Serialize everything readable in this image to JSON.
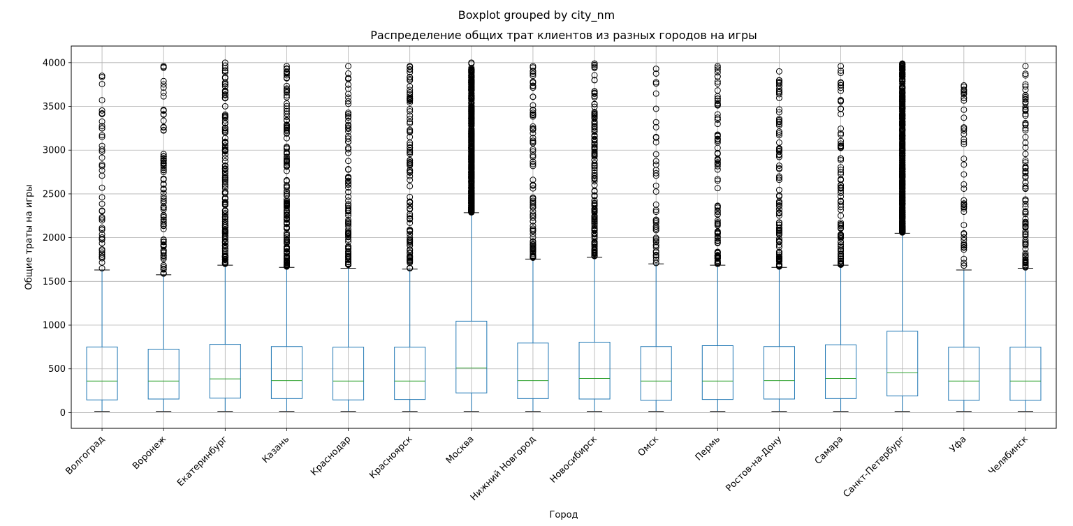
{
  "suptitle": "Boxplot grouped by city_nm",
  "chart_data": {
    "type": "boxplot",
    "title": "Распределение общих трат клиентов из разных городов на игры",
    "xlabel": "Город",
    "ylabel": "Общие траты на игры",
    "ylim": [
      -180,
      4190
    ],
    "yticks": [
      0,
      500,
      1000,
      1500,
      2000,
      2500,
      3000,
      3500,
      4000
    ],
    "grid": true,
    "colors": {
      "box": "#1f77b4",
      "median": "#2ca02c",
      "flier": "#000000",
      "grid": "#b0b0b0"
    },
    "categories": [
      "Волгоград",
      "Воронеж",
      "Екатеринбург",
      "Казань",
      "Краснодар",
      "Красноярск",
      "Москва",
      "Нижний Новгород",
      "Новосибирск",
      "Омск",
      "Пермь",
      "Ростов-на-Дону",
      "Самара",
      "Санкт-Петербург",
      "Уфа",
      "Челябинск"
    ],
    "boxes": [
      {
        "whislo": 15,
        "q1": 145,
        "median": 360,
        "q3": 750,
        "whishi": 1630,
        "fliers_min": 1650,
        "fliers_max": 3850,
        "flier_density": "sparse"
      },
      {
        "whislo": 15,
        "q1": 155,
        "median": 360,
        "q3": 725,
        "whishi": 1575,
        "fliers_min": 1590,
        "fliers_max": 3960,
        "flier_density": "medium"
      },
      {
        "whislo": 15,
        "q1": 165,
        "median": 385,
        "q3": 780,
        "whishi": 1685,
        "fliers_min": 1700,
        "fliers_max": 4000,
        "flier_density": "dense"
      },
      {
        "whislo": 15,
        "q1": 160,
        "median": 365,
        "q3": 755,
        "whishi": 1660,
        "fliers_min": 1670,
        "fliers_max": 3960,
        "flier_density": "dense"
      },
      {
        "whislo": 15,
        "q1": 145,
        "median": 360,
        "q3": 748,
        "whishi": 1650,
        "fliers_min": 1690,
        "fliers_max": 3960,
        "flier_density": "medium"
      },
      {
        "whislo": 15,
        "q1": 150,
        "median": 360,
        "q3": 748,
        "whishi": 1640,
        "fliers_min": 1650,
        "fliers_max": 3960,
        "flier_density": "medium"
      },
      {
        "whislo": 15,
        "q1": 225,
        "median": 510,
        "q3": 1045,
        "whishi": 2285,
        "fliers_min": 2290,
        "fliers_max": 4000,
        "flier_density": "solid"
      },
      {
        "whislo": 15,
        "q1": 160,
        "median": 365,
        "q3": 795,
        "whishi": 1755,
        "fliers_min": 1770,
        "fliers_max": 3960,
        "flier_density": "medium"
      },
      {
        "whislo": 15,
        "q1": 155,
        "median": 390,
        "q3": 805,
        "whishi": 1775,
        "fliers_min": 1790,
        "fliers_max": 3990,
        "flier_density": "dense"
      },
      {
        "whislo": 15,
        "q1": 140,
        "median": 360,
        "q3": 755,
        "whishi": 1700,
        "fliers_min": 1710,
        "fliers_max": 3930,
        "flier_density": "sparse"
      },
      {
        "whislo": 15,
        "q1": 150,
        "median": 360,
        "q3": 765,
        "whishi": 1685,
        "fliers_min": 1700,
        "fliers_max": 3960,
        "flier_density": "medium"
      },
      {
        "whislo": 15,
        "q1": 155,
        "median": 365,
        "q3": 755,
        "whishi": 1660,
        "fliers_min": 1670,
        "fliers_max": 3900,
        "flier_density": "medium"
      },
      {
        "whislo": 15,
        "q1": 160,
        "median": 390,
        "q3": 775,
        "whishi": 1685,
        "fliers_min": 1690,
        "fliers_max": 3960,
        "flier_density": "medium"
      },
      {
        "whislo": 15,
        "q1": 190,
        "median": 455,
        "q3": 930,
        "whishi": 2050,
        "fliers_min": 2060,
        "fliers_max": 3990,
        "flier_density": "solid"
      },
      {
        "whislo": 15,
        "q1": 140,
        "median": 360,
        "q3": 748,
        "whishi": 1630,
        "fliers_min": 1680,
        "fliers_max": 3740,
        "flier_density": "sparse"
      },
      {
        "whislo": 15,
        "q1": 140,
        "median": 360,
        "q3": 748,
        "whishi": 1650,
        "fliers_min": 1660,
        "fliers_max": 3960,
        "flier_density": "medium"
      }
    ]
  }
}
